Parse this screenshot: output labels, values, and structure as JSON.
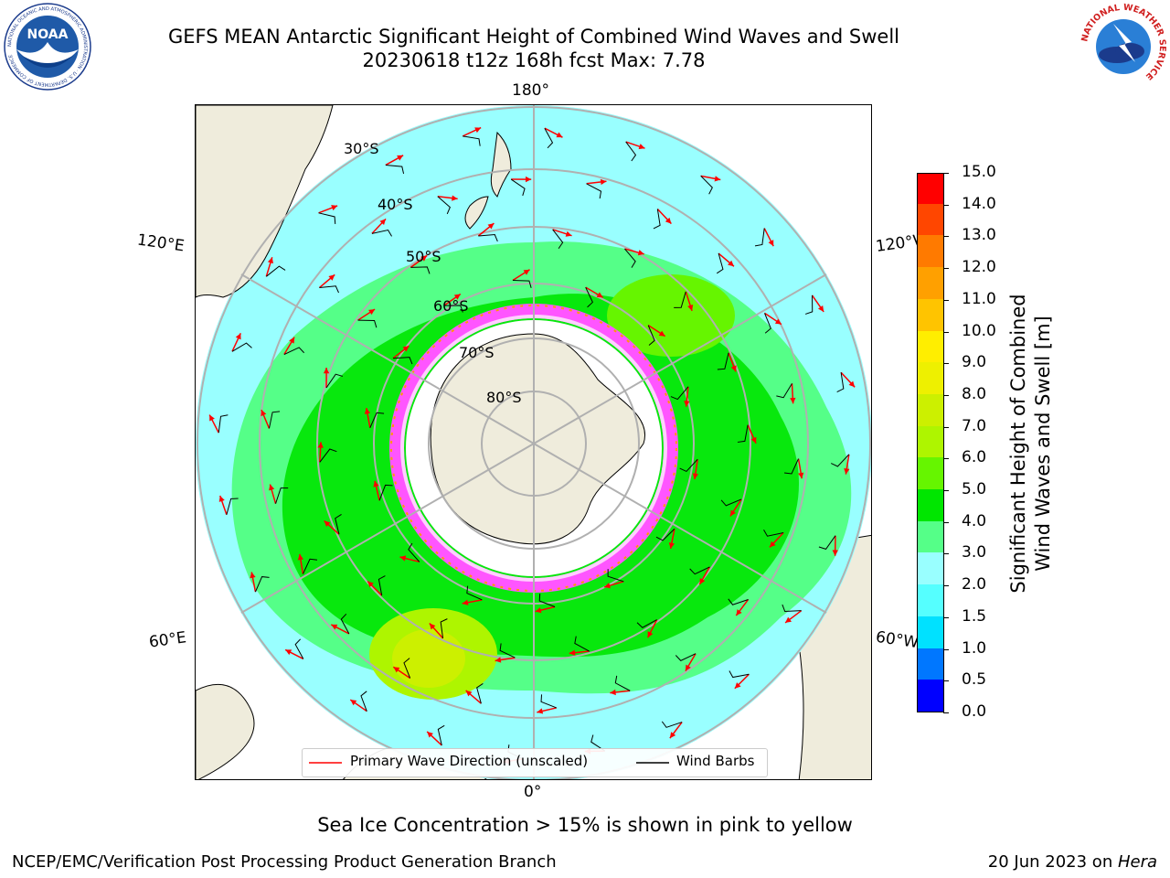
{
  "header": {
    "title_line1": "GEFS MEAN Antarctic Significant Height of Combined Wind Waves and Swell",
    "title_line2": "20230618 t12z 168h fcst   Max: 7.78"
  },
  "logos": {
    "noaa_text": "NOAA",
    "noaa_ring_text": "NATIONAL OCEANIC AND ATMOSPHERIC ADMINISTRATION · U.S. DEPARTMENT OF COMMERCE",
    "nws_ring_text": "NATIONAL WEATHER SERVICE"
  },
  "map": {
    "projection": "south-polar stereographic",
    "longitude_labels": {
      "top": "180°",
      "bottom": "0°",
      "upper_left": "120°E",
      "upper_right": "120°W",
      "lower_left": "60°E",
      "lower_right": "60°W"
    },
    "latitude_labels": [
      "30°S",
      "40°S",
      "50°S",
      "60°S",
      "70°S",
      "80°S"
    ],
    "colors": {
      "land": "#efecdc",
      "ocean_high": "#00ff00",
      "sea_ice": "#ff55ff",
      "grid": "#b0b0b0",
      "arrow": "#ff0000",
      "barb": "#000000"
    }
  },
  "legend": {
    "items": [
      {
        "label": "Primary Wave Direction (unscaled)",
        "color": "#ff0000"
      },
      {
        "label": "Wind Barbs",
        "color": "#000000"
      }
    ]
  },
  "colorbar": {
    "title_line1": "Significant Height of Combined",
    "title_line2": "Wind Waves and Swell [m]",
    "ticks": [
      "0.0",
      "0.5",
      "1.0",
      "1.5",
      "2.0",
      "3.0",
      "4.0",
      "5.0",
      "6.0",
      "7.0",
      "8.0",
      "9.0",
      "10.0",
      "11.0",
      "12.0",
      "13.0",
      "14.0",
      "15.0"
    ],
    "colors": [
      "#0000ff",
      "#0077ff",
      "#00e1ff",
      "#55ffff",
      "#99ffff",
      "#55ff88",
      "#00e600",
      "#66f500",
      "#aef500",
      "#ccf000",
      "#eef000",
      "#ffee00",
      "#ffc400",
      "#ffa000",
      "#ff7a00",
      "#ff4600",
      "#ff0000"
    ]
  },
  "note": "Sea Ice Concentration > 15% is shown in pink to yellow",
  "footer": {
    "left": "NCEP/EMC/Verification Post Processing Product Generation Branch",
    "right_date": "20 Jun 2023 on ",
    "right_host": "Hera"
  }
}
